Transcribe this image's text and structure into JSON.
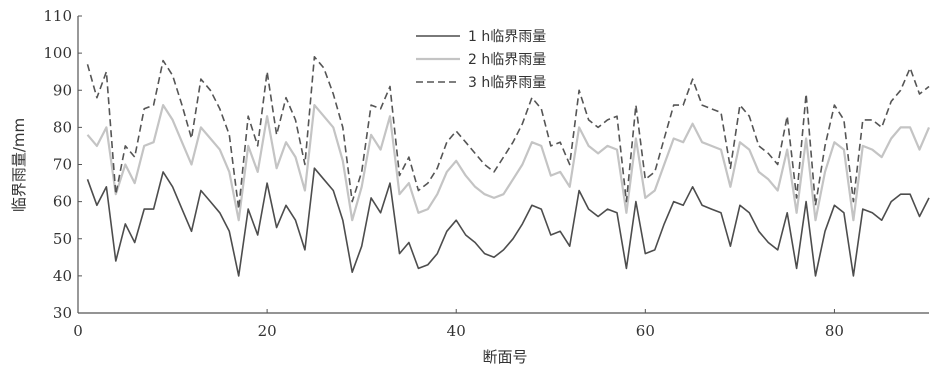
{
  "chart_data": {
    "type": "line",
    "title": "",
    "xlabel": "断面号",
    "ylabel": "临界雨量/mm",
    "xlim": [
      0,
      90
    ],
    "ylim": [
      30,
      110
    ],
    "xticks": [
      0,
      20,
      40,
      60,
      80
    ],
    "yticks": [
      30,
      40,
      50,
      60,
      70,
      80,
      90,
      100,
      110
    ],
    "grid": false,
    "legend_position": "top-center",
    "x": [
      1,
      2,
      3,
      4,
      5,
      6,
      7,
      8,
      9,
      10,
      11,
      12,
      13,
      14,
      15,
      16,
      17,
      18,
      19,
      20,
      21,
      22,
      23,
      24,
      25,
      26,
      27,
      28,
      29,
      30,
      31,
      32,
      33,
      34,
      35,
      36,
      37,
      38,
      39,
      40,
      41,
      42,
      43,
      44,
      45,
      46,
      47,
      48,
      49,
      50,
      51,
      52,
      53,
      54,
      55,
      56,
      57,
      58,
      59,
      60,
      61,
      62,
      63,
      64,
      65,
      66,
      67,
      68,
      69,
      70,
      71,
      72,
      73,
      74,
      75,
      76,
      77,
      78,
      79,
      80,
      81,
      82,
      83,
      84,
      85,
      86,
      87,
      88,
      89,
      90
    ],
    "series": [
      {
        "name": "1 h临界雨量",
        "color": "#4d4d4d",
        "dash": "",
        "values": [
          66,
          59,
          64,
          44,
          54,
          49,
          58,
          58,
          68,
          64,
          58,
          52,
          63,
          60,
          57,
          52,
          40,
          58,
          51,
          65,
          53,
          59,
          55,
          47,
          69,
          66,
          63,
          55,
          41,
          48,
          61,
          57,
          65,
          46,
          49,
          42,
          43,
          46,
          52,
          55,
          51,
          49,
          46,
          45,
          47,
          50,
          54,
          59,
          58,
          51,
          52,
          48,
          63,
          58,
          56,
          58,
          57,
          42,
          60,
          46,
          47,
          54,
          60,
          59,
          64,
          59,
          58,
          57,
          48,
          59,
          57,
          52,
          49,
          47,
          57,
          42,
          60,
          40,
          52,
          59,
          57,
          40,
          58,
          57,
          55,
          60,
          62,
          62,
          56,
          61
        ]
      },
      {
        "name": "2 h临界雨量",
        "color": "#c4c4c4",
        "dash": "",
        "values": [
          78,
          75,
          80,
          62,
          70,
          65,
          75,
          76,
          86,
          82,
          76,
          70,
          80,
          77,
          74,
          68,
          55,
          75,
          68,
          83,
          69,
          76,
          72,
          63,
          86,
          83,
          80,
          71,
          55,
          64,
          78,
          74,
          83,
          62,
          65,
          57,
          58,
          62,
          68,
          71,
          67,
          64,
          62,
          61,
          62,
          66,
          70,
          76,
          75,
          67,
          68,
          64,
          80,
          75,
          73,
          75,
          74,
          57,
          77,
          61,
          63,
          70,
          77,
          76,
          81,
          76,
          75,
          74,
          64,
          76,
          74,
          68,
          66,
          63,
          74,
          57,
          77,
          55,
          68,
          76,
          74,
          55,
          75,
          74,
          72,
          77,
          80,
          80,
          74,
          80
        ]
      },
      {
        "name": "3 h临界雨量",
        "color": "#555555",
        "dash": "7,4",
        "values": [
          97,
          88,
          95,
          62,
          75,
          72,
          85,
          86,
          98,
          94,
          86,
          77,
          93,
          90,
          85,
          78,
          58,
          83,
          75,
          95,
          78,
          88,
          82,
          70,
          99,
          96,
          89,
          80,
          60,
          68,
          86,
          85,
          91,
          67,
          72,
          63,
          65,
          69,
          76,
          79,
          76,
          73,
          70,
          68,
          72,
          76,
          81,
          88,
          85,
          75,
          76,
          70,
          90,
          82,
          80,
          82,
          83,
          60,
          86,
          66,
          68,
          77,
          86,
          86,
          93,
          86,
          85,
          84,
          69,
          86,
          83,
          75,
          73,
          70,
          83,
          61,
          89,
          59,
          75,
          86,
          82,
          60,
          82,
          82,
          80,
          87,
          90,
          96,
          89,
          91
        ]
      }
    ]
  }
}
